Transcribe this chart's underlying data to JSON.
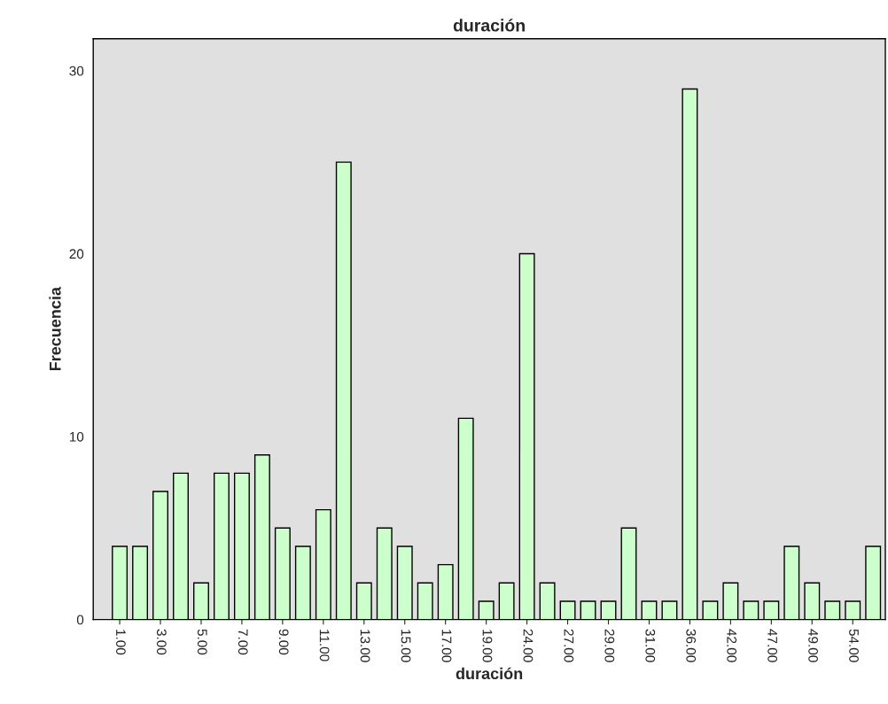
{
  "chart_data": {
    "type": "bar",
    "title": "duración",
    "xlabel": "duración",
    "ylabel": "Frecuencia",
    "categories": [
      "1.00",
      null,
      "3.00",
      null,
      "5.00",
      null,
      "7.00",
      null,
      "9.00",
      null,
      "11.00",
      null,
      "13.00",
      null,
      "15.00",
      null,
      "17.00",
      null,
      "19.00",
      null,
      "24.00",
      null,
      "27.00",
      null,
      "29.00",
      null,
      "31.00",
      null,
      "36.00",
      null,
      "42.00",
      null,
      "47.00",
      null,
      "49.00",
      null,
      "54.00",
      null
    ],
    "values": [
      4,
      4,
      7,
      8,
      2,
      8,
      8,
      9,
      5,
      4,
      6,
      25,
      2,
      5,
      4,
      2,
      3,
      11,
      1,
      2,
      20,
      2,
      1,
      1,
      1,
      5,
      1,
      1,
      29,
      1,
      2,
      1,
      1,
      4,
      2,
      1,
      1,
      4
    ],
    "color": "#ccffcc",
    "ylim": [
      0,
      31.75
    ],
    "yticks": [
      0,
      10,
      20,
      30
    ],
    "grid": false,
    "legend": false
  }
}
